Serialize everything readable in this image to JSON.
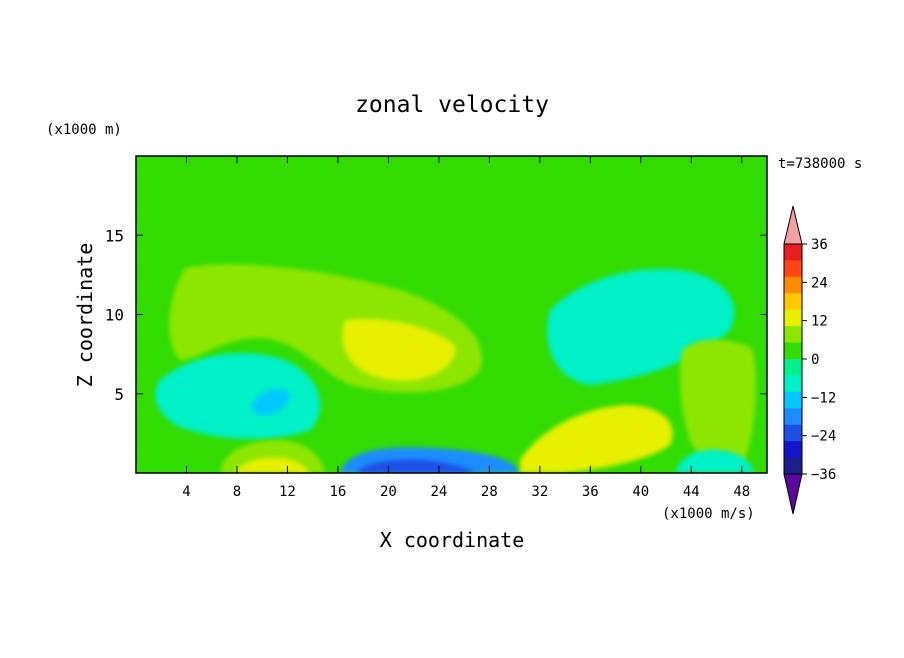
{
  "chart_data": {
    "type": "heatmap",
    "title": "zonal velocity",
    "xlabel": "X coordinate",
    "ylabel": "Z coordinate",
    "x_unit_label": "(x1000 m/s)",
    "y_unit_label": "(x1000 m)",
    "time_label": "t=738000 s",
    "xlim": [
      0,
      50
    ],
    "ylim": [
      0,
      20
    ],
    "x_ticks": [
      4,
      8,
      12,
      16,
      20,
      24,
      28,
      32,
      36,
      40,
      44,
      48
    ],
    "y_ticks": [
      5,
      10,
      15
    ],
    "colorbar": {
      "ticks": [
        36,
        24,
        12,
        0,
        -12,
        -24,
        -36
      ],
      "levels": [
        -42,
        -36,
        -30,
        -24,
        -18,
        -12,
        -6,
        0,
        6,
        12,
        18,
        24,
        30,
        36,
        42
      ],
      "colors": [
        "#5a0a9a",
        "#1e1e8c",
        "#1414c8",
        "#1e50e6",
        "#1e8cff",
        "#00c8ff",
        "#00f0c8",
        "#00f08c",
        "#32dc00",
        "#8ce600",
        "#e6f000",
        "#ffc800",
        "#ff8c00",
        "#ff4614",
        "#e61e1e",
        "#f0a0a0"
      ],
      "extend": "both"
    },
    "field_regions": [
      {
        "region": "background",
        "value": 0
      },
      {
        "region": "upper-left band",
        "value": 4
      },
      {
        "region": "upper-right band",
        "value": 0
      },
      {
        "region": "upper-left jet",
        "value": 8
      },
      {
        "region": "left jet core",
        "value": 12
      },
      {
        "region": "lower-left minimum",
        "value": -10
      },
      {
        "region": "lower-left core",
        "value": -16
      },
      {
        "region": "bottom jet",
        "value": 10
      },
      {
        "region": "bottom jet core",
        "value": 16
      },
      {
        "region": "bottom minimum",
        "value": -20
      },
      {
        "region": "bottom minimum core",
        "value": -30
      },
      {
        "region": "mid-right minimum",
        "value": -8
      },
      {
        "region": "lower-right jet",
        "value": 12
      },
      {
        "region": "lower-right jet core",
        "value": 16
      },
      {
        "region": "right jet",
        "value": 6
      },
      {
        "region": "lower-right minimum",
        "value": -10
      }
    ]
  }
}
